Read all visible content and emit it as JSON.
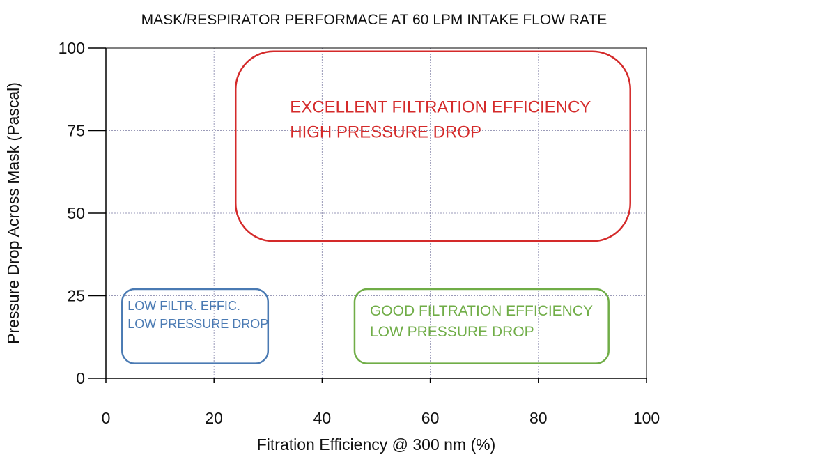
{
  "chart_data": {
    "type": "scatter",
    "title": "MASK/RESPIRATOR PERFORMACE AT 60 LPM INTAKE FLOW RATE",
    "xlabel": "Fitration Efficiency @ 300 nm (%)",
    "ylabel": "Pressure Drop Across Mask (Pascal)",
    "xlim": [
      0,
      100
    ],
    "ylim": [
      0,
      100
    ],
    "x_ticks": [
      "0",
      "20",
      "40",
      "60",
      "80",
      "100"
    ],
    "y_ticks": [
      "0",
      "25",
      "50",
      "75",
      "100"
    ],
    "grid": true,
    "regions": [
      {
        "x_range": [
          3,
          30
        ],
        "y_range": [
          4.5,
          27
        ],
        "color": "#4a7ab3",
        "lines": [
          "LOW FILTR. EFFIC.",
          "LOW PRESSURE DROP"
        ]
      },
      {
        "x_range": [
          46,
          93
        ],
        "y_range": [
          4.5,
          27
        ],
        "color": "#70ad47",
        "lines": [
          "GOOD FILTRATION EFFICIENCY",
          "LOW PRESSURE DROP"
        ]
      },
      {
        "x_range": [
          24,
          97
        ],
        "y_range": [
          41.5,
          99
        ],
        "color": "#d42a2a",
        "lines": [
          "EXCELLENT FILTRATION EFFICIENCY",
          "HIGH PRESSURE DROP"
        ]
      }
    ]
  }
}
